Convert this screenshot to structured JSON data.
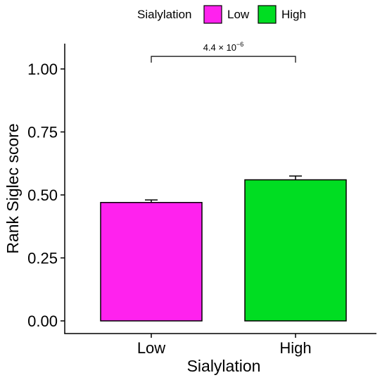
{
  "chart_data": {
    "type": "bar",
    "title": "",
    "xlabel": "Sialylation",
    "ylabel": "Rank Siglec score",
    "categories": [
      "Low",
      "High"
    ],
    "values": [
      0.47,
      0.56
    ],
    "errors": [
      0.01,
      0.015
    ],
    "colors": [
      "#FF22EE",
      "#00DD22"
    ],
    "ylim": [
      0,
      1.1
    ],
    "yticks": [
      0.0,
      0.25,
      0.5,
      0.75,
      1.0
    ],
    "ytick_labels": [
      "0.00",
      "0.25",
      "0.50",
      "0.75",
      "1.00"
    ],
    "grid": false,
    "legend": {
      "title": "Sialylation",
      "position": "top",
      "entries": [
        "Low",
        "High"
      ]
    },
    "annotation": {
      "base": "4.4",
      "times": "×",
      "ten": "10",
      "exponent": "−6",
      "y": 1.05,
      "drop": 0.025
    }
  }
}
